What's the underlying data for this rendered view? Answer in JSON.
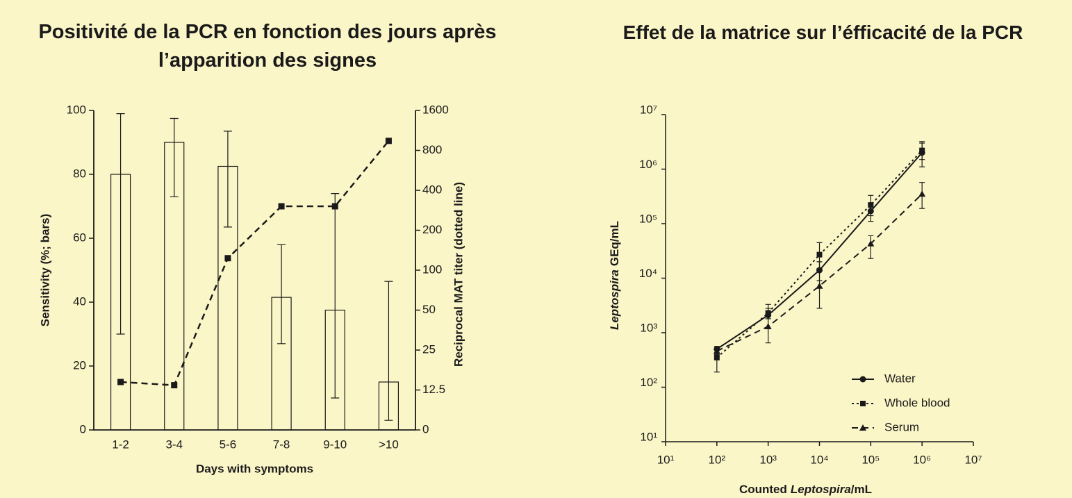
{
  "chart_data": [
    {
      "type": "bar",
      "title": "Positivité de la PCR en fonction des jours après l’apparition des signes",
      "xlabel": "Days with symptoms",
      "ylabel": "Sensitivity (%; bars)",
      "y2label": "Reciprocal MAT titer (dotted line)",
      "categories": [
        "1-2",
        "3-4",
        "5-6",
        "7-8",
        "9-10",
        ">10"
      ],
      "ylim": [
        0,
        100
      ],
      "yticks": [
        0,
        20,
        40,
        60,
        80,
        100
      ],
      "y2lim": [
        0,
        1600
      ],
      "y2ticks": [
        0,
        12.5,
        25,
        50,
        100,
        200,
        400,
        800,
        1600
      ],
      "y2_scale": "tick-spaced",
      "series": [
        {
          "type": "bar",
          "color": "#1a1a1a",
          "values": [
            80,
            90,
            82.5,
            41.5,
            37.5,
            15
          ],
          "lower": [
            30,
            73,
            63.5,
            27,
            10,
            3
          ],
          "upper": [
            99,
            97.5,
            93.5,
            58,
            74,
            46.5
          ]
        },
        {
          "type": "line",
          "axis": "y2",
          "color": "#1a1a1a",
          "style": "dashed",
          "marker": "square",
          "values": [
            15,
            14,
            130,
            320,
            320,
            990
          ]
        }
      ]
    },
    {
      "type": "line",
      "log": true,
      "title": "Effet de la matrice sur l’éfficacité de la PCR",
      "xlabel": {
        "before": "Counted",
        "italic": "Leptospira",
        "after": "/mL"
      },
      "ylabel": {
        "italic": "Leptospira",
        "after": "GEq/mL"
      },
      "x": [
        100,
        1000,
        10000,
        100000,
        1000000
      ],
      "xlim": [
        10,
        10000000
      ],
      "ylim": [
        10,
        10000000
      ],
      "xticks": [
        {
          "value": 10,
          "label": "10¹"
        },
        {
          "value": 100,
          "label": "10²"
        },
        {
          "value": 1000,
          "label": "10³"
        },
        {
          "value": 10000,
          "label": "10⁴"
        },
        {
          "value": 100000,
          "label": "10⁵"
        },
        {
          "value": 1000000,
          "label": "10⁶"
        },
        {
          "value": 10000000,
          "label": "10⁷"
        }
      ],
      "yticks": [
        {
          "value": 10,
          "label": "10¹"
        },
        {
          "value": 100,
          "label": "10²"
        },
        {
          "value": 1000,
          "label": "10³"
        },
        {
          "value": 10000,
          "label": "10⁴"
        },
        {
          "value": 100000,
          "label": "10⁵"
        },
        {
          "value": 1000000,
          "label": "10⁶"
        },
        {
          "value": 10000000,
          "label": "10⁷"
        }
      ],
      "legend": "lower right",
      "series": [
        {
          "name": "Water",
          "color": "#1a1a1a",
          "style": "solid",
          "marker": "circle",
          "values": [
            500,
            2100,
            14000,
            170000,
            2000000
          ],
          "lower": [
            420,
            1800,
            9000,
            110000,
            1100000
          ],
          "upper": [
            560,
            2500,
            20000,
            230000,
            3200000
          ]
        },
        {
          "name": "Whole blood",
          "color": "#1a1a1a",
          "style": "dotted",
          "marker": "square",
          "values": [
            350,
            2300,
            27000,
            220000,
            2200000
          ],
          "lower": [
            190,
            1800,
            15000,
            140000,
            1500000
          ],
          "upper": [
            500,
            3300,
            45000,
            330000,
            3000000
          ]
        },
        {
          "name": "Serum",
          "color": "#1a1a1a",
          "style": "dashed",
          "marker": "triangle",
          "values": [
            460,
            1300,
            7200,
            43000,
            350000
          ],
          "lower": [
            400,
            650,
            2800,
            23000,
            190000
          ],
          "upper": [
            520,
            2800,
            15000,
            60000,
            570000
          ]
        }
      ]
    }
  ]
}
